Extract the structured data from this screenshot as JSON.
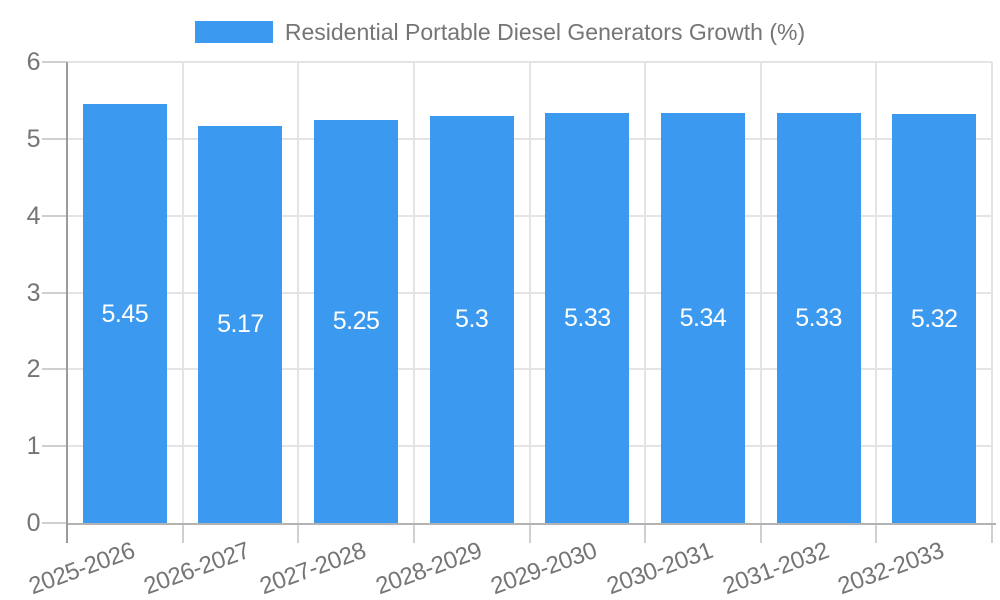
{
  "chart_data": {
    "type": "bar",
    "title": "Residential Portable Diesel Generators Growth (%)",
    "categories": [
      "2025-2026",
      "2026-2027",
      "2027-2028",
      "2028-2029",
      "2029-2030",
      "2030-2031",
      "2031-2032",
      "2032-2033"
    ],
    "values": [
      5.45,
      5.17,
      5.25,
      5.3,
      5.33,
      5.34,
      5.33,
      5.32
    ],
    "bar_value_labels": [
      "5.45",
      "5.17",
      "5.25",
      "5.3",
      "5.33",
      "5.34",
      "5.33",
      "5.32"
    ],
    "xlabel": "",
    "ylabel": "",
    "ylim": [
      0,
      6
    ],
    "yticks": [
      0,
      1,
      2,
      3,
      4,
      5,
      6
    ],
    "grid": true,
    "legend_position": "top-center",
    "bar_color": "#3b9af0",
    "bar_label_color": "#ffffff",
    "axis_text_color": "#757575",
    "gridline_color": "#e4e4e4",
    "axis_line_color": "#b2b2b2"
  }
}
